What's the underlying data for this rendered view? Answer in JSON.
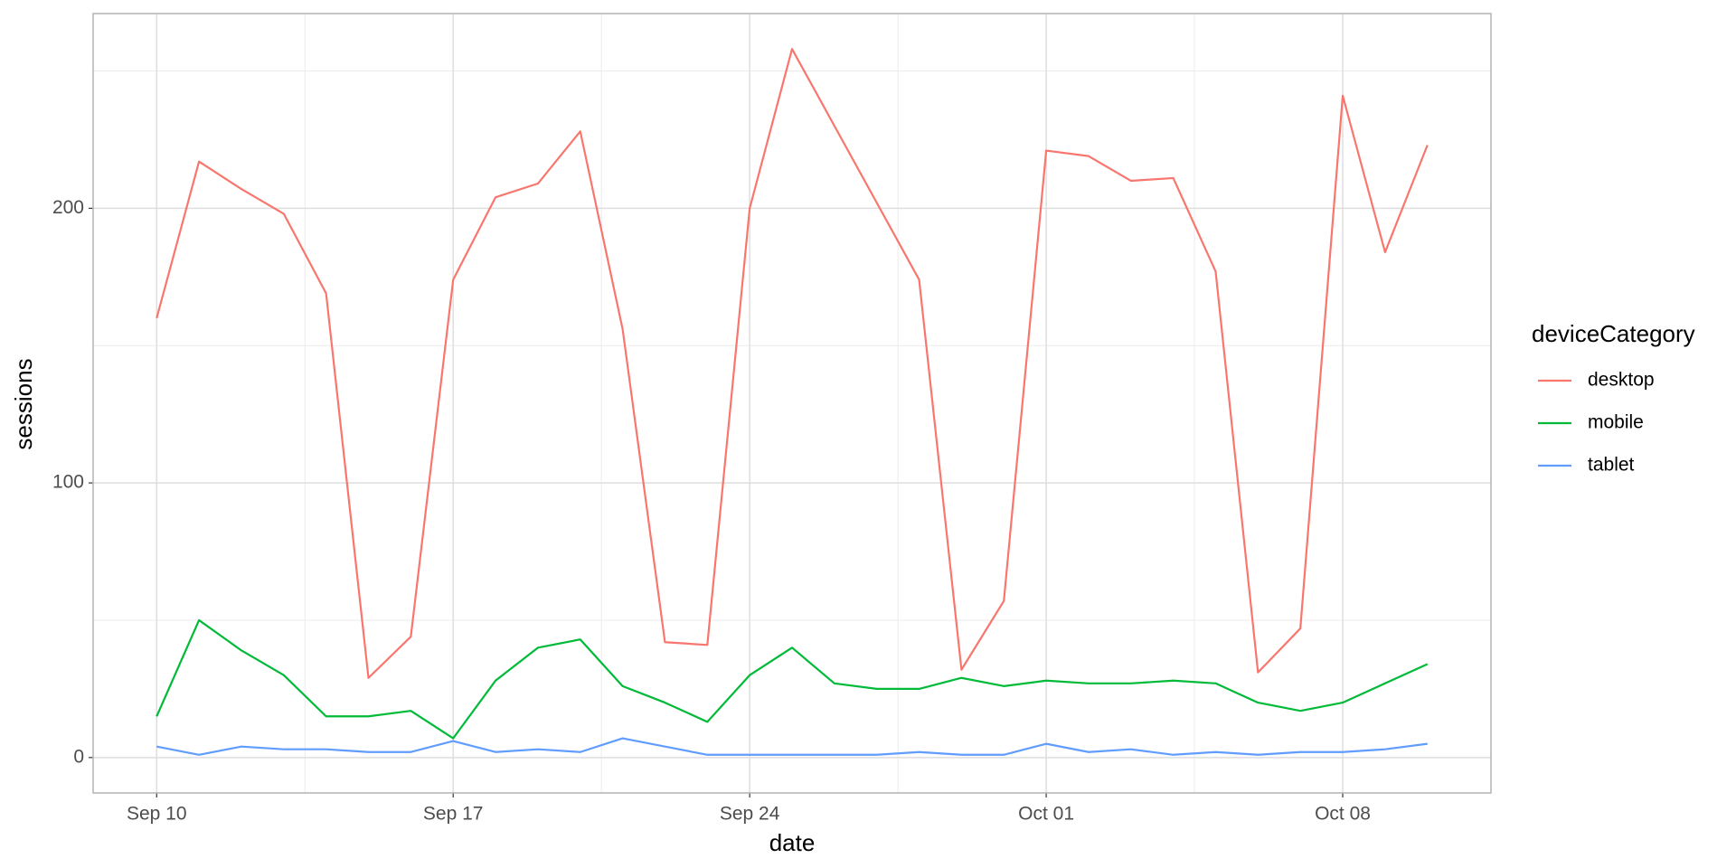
{
  "chart_data": {
    "type": "line",
    "x_label": "date",
    "y_label": "sessions",
    "legend_title": "deviceCategory",
    "x": [
      "Sep 10",
      "Sep 11",
      "Sep 12",
      "Sep 13",
      "Sep 14",
      "Sep 15",
      "Sep 16",
      "Sep 17",
      "Sep 18",
      "Sep 19",
      "Sep 20",
      "Sep 21",
      "Sep 22",
      "Sep 23",
      "Sep 24",
      "Sep 25",
      "Sep 26",
      "Sep 27",
      "Sep 28",
      "Sep 29",
      "Sep 30",
      "Oct 01",
      "Oct 02",
      "Oct 03",
      "Oct 04",
      "Oct 05",
      "Oct 06",
      "Oct 07",
      "Oct 08",
      "Oct 09",
      "Oct 10"
    ],
    "xticks": [
      "Sep 10",
      "Sep 17",
      "Sep 24",
      "Oct 01",
      "Oct 08"
    ],
    "ylim": [
      -12.9,
      270.9
    ],
    "yticks": [
      0,
      100,
      200
    ],
    "grid": true,
    "legend_position": "right",
    "series": [
      {
        "name": "desktop",
        "color": "#F8766D",
        "values": [
          160,
          217,
          207,
          198,
          169,
          29,
          44,
          174,
          204,
          209,
          228,
          156,
          42,
          41,
          200,
          258,
          230,
          202,
          174,
          32,
          57,
          221,
          219,
          210,
          211,
          177,
          31,
          47,
          241,
          184,
          223
        ]
      },
      {
        "name": "mobile",
        "color": "#00BA38",
        "values": [
          15,
          50,
          39,
          30,
          15,
          15,
          17,
          7,
          28,
          40,
          43,
          26,
          20,
          13,
          30,
          40,
          27,
          25,
          25,
          29,
          26,
          28,
          27,
          27,
          28,
          27,
          20,
          17,
          20,
          27,
          34
        ]
      },
      {
        "name": "tablet",
        "color": "#619CFF",
        "values": [
          4,
          1,
          4,
          3,
          3,
          2,
          2,
          6,
          2,
          3,
          2,
          7,
          4,
          1,
          1,
          1,
          1,
          1,
          2,
          1,
          1,
          5,
          2,
          3,
          1,
          2,
          1,
          2,
          2,
          3,
          5
        ]
      }
    ]
  }
}
